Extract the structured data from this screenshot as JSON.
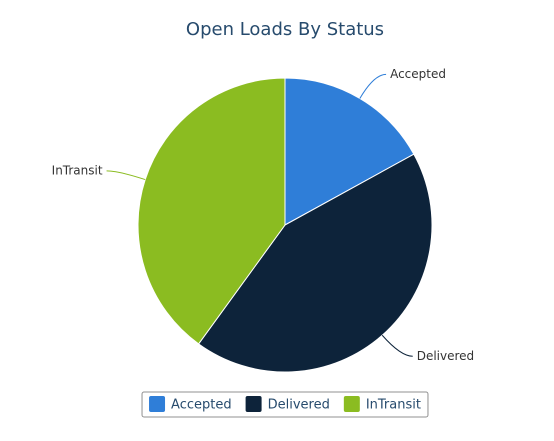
{
  "chart_data": {
    "type": "pie",
    "title": "Open Loads By Status",
    "categories": [
      "Accepted",
      "Delivered",
      "InTransit"
    ],
    "values": [
      17,
      43,
      40
    ],
    "colors": [
      "#2f7ed8",
      "#0d233a",
      "#8bbc21"
    ],
    "legend": "bottom"
  }
}
